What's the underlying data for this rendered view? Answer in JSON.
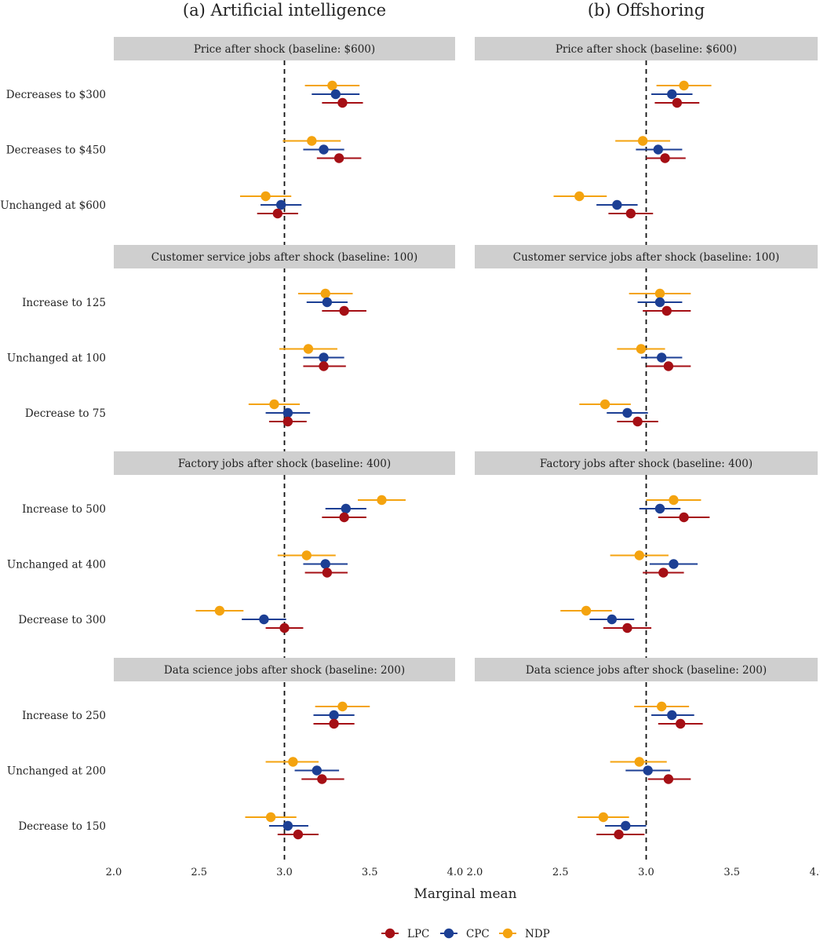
{
  "chart_data": {
    "type": "dot-and-whisker",
    "xlabel": "Marginal mean",
    "xlim": [
      2.0,
      4.0
    ],
    "xticks": [
      2.0,
      2.5,
      3.0,
      3.5,
      4.0
    ],
    "xtick_labels": [
      "2.0",
      "2.5",
      "3.0",
      "3.5",
      "4.0"
    ],
    "reference_line": 3.0,
    "legend": [
      {
        "key": "LPC",
        "label": "LPC",
        "color": "#a50f15"
      },
      {
        "key": "CPC",
        "label": "CPC",
        "color": "#1c3f94"
      },
      {
        "key": "NDP",
        "label": "NDP",
        "color": "#f4a30f"
      }
    ],
    "panels": [
      {
        "title": "(a) Artificial intelligence",
        "facets": [
          {
            "title": "Price after shock (baseline: $600)",
            "rows": [
              {
                "label": "Decreases to $300",
                "NDP": [
                  3.28,
                  3.12,
                  3.44
                ],
                "CPC": [
                  3.3,
                  3.16,
                  3.44
                ],
                "LPC": [
                  3.34,
                  3.22,
                  3.46
                ]
              },
              {
                "label": "Decreases to $450",
                "NDP": [
                  3.16,
                  2.99,
                  3.33
                ],
                "CPC": [
                  3.23,
                  3.11,
                  3.35
                ],
                "LPC": [
                  3.32,
                  3.19,
                  3.45
                ]
              },
              {
                "label": "Unchanged at $600",
                "NDP": [
                  2.89,
                  2.74,
                  3.04
                ],
                "CPC": [
                  2.98,
                  2.86,
                  3.1
                ],
                "LPC": [
                  2.96,
                  2.84,
                  3.08
                ]
              }
            ]
          },
          {
            "title": "Customer service jobs after shock (baseline: 100)",
            "rows": [
              {
                "label": "Increase to 125",
                "NDP": [
                  3.24,
                  3.08,
                  3.4
                ],
                "CPC": [
                  3.25,
                  3.13,
                  3.37
                ],
                "LPC": [
                  3.35,
                  3.22,
                  3.48
                ]
              },
              {
                "label": "Unchanged at 100",
                "NDP": [
                  3.14,
                  2.97,
                  3.31
                ],
                "CPC": [
                  3.23,
                  3.11,
                  3.35
                ],
                "LPC": [
                  3.23,
                  3.11,
                  3.36
                ]
              },
              {
                "label": "Decrease to 75",
                "NDP": [
                  2.94,
                  2.79,
                  3.09
                ],
                "CPC": [
                  3.02,
                  2.89,
                  3.15
                ],
                "LPC": [
                  3.02,
                  2.91,
                  3.13
                ]
              }
            ]
          },
          {
            "title": "Factory jobs after shock (baseline: 400)",
            "rows": [
              {
                "label": "Increase to 500",
                "NDP": [
                  3.57,
                  3.43,
                  3.71
                ],
                "CPC": [
                  3.36,
                  3.24,
                  3.48
                ],
                "LPC": [
                  3.35,
                  3.22,
                  3.48
                ]
              },
              {
                "label": "Unchanged at 400",
                "NDP": [
                  3.13,
                  2.96,
                  3.3
                ],
                "CPC": [
                  3.24,
                  3.11,
                  3.37
                ],
                "LPC": [
                  3.25,
                  3.12,
                  3.37
                ]
              },
              {
                "label": "Decrease to 300",
                "NDP": [
                  2.62,
                  2.48,
                  2.76
                ],
                "CPC": [
                  2.88,
                  2.75,
                  3.01
                ],
                "LPC": [
                  3.0,
                  2.89,
                  3.11
                ]
              }
            ]
          },
          {
            "title": "Data science jobs after shock (baseline: 200)",
            "rows": [
              {
                "label": "Increase to 250",
                "NDP": [
                  3.34,
                  3.18,
                  3.5
                ],
                "CPC": [
                  3.29,
                  3.17,
                  3.41
                ],
                "LPC": [
                  3.29,
                  3.17,
                  3.41
                ]
              },
              {
                "label": "Unchanged at 200",
                "NDP": [
                  3.05,
                  2.89,
                  3.2
                ],
                "CPC": [
                  3.19,
                  3.06,
                  3.32
                ],
                "LPC": [
                  3.22,
                  3.1,
                  3.35
                ]
              },
              {
                "label": "Decrease to 150",
                "NDP": [
                  2.92,
                  2.77,
                  3.07
                ],
                "CPC": [
                  3.02,
                  2.91,
                  3.14
                ],
                "LPC": [
                  3.08,
                  2.96,
                  3.2
                ]
              }
            ]
          }
        ]
      },
      {
        "title": "(b) Offshoring",
        "facets": [
          {
            "title": "Price after shock (baseline: $600)",
            "rows": [
              {
                "label": "Decreases to $300",
                "NDP": [
                  3.22,
                  3.06,
                  3.38
                ],
                "CPC": [
                  3.15,
                  3.03,
                  3.27
                ],
                "LPC": [
                  3.18,
                  3.05,
                  3.31
                ]
              },
              {
                "label": "Decreases to $450",
                "NDP": [
                  2.98,
                  2.82,
                  3.14
                ],
                "CPC": [
                  3.07,
                  2.94,
                  3.21
                ],
                "LPC": [
                  3.11,
                  3.0,
                  3.23
                ]
              },
              {
                "label": "Unchanged at $600",
                "NDP": [
                  2.61,
                  2.46,
                  2.77
                ],
                "CPC": [
                  2.83,
                  2.71,
                  2.95
                ],
                "LPC": [
                  2.91,
                  2.78,
                  3.04
                ]
              }
            ]
          },
          {
            "title": "Customer service jobs after shock (baseline: 100)",
            "rows": [
              {
                "label": "Increase to 125",
                "NDP": [
                  3.08,
                  2.9,
                  3.26
                ],
                "CPC": [
                  3.08,
                  2.95,
                  3.21
                ],
                "LPC": [
                  3.12,
                  2.98,
                  3.26
                ]
              },
              {
                "label": "Unchanged at 100",
                "NDP": [
                  2.97,
                  2.83,
                  3.11
                ],
                "CPC": [
                  3.09,
                  2.97,
                  3.21
                ],
                "LPC": [
                  3.13,
                  3.0,
                  3.26
                ]
              },
              {
                "label": "Decrease to 75",
                "NDP": [
                  2.76,
                  2.61,
                  2.91
                ],
                "CPC": [
                  2.89,
                  2.77,
                  3.01
                ],
                "LPC": [
                  2.95,
                  2.83,
                  3.07
                ]
              }
            ]
          },
          {
            "title": "Factory jobs after shock (baseline: 400)",
            "rows": [
              {
                "label": "Increase to 500",
                "NDP": [
                  3.16,
                  3.0,
                  3.32
                ],
                "CPC": [
                  3.08,
                  2.96,
                  3.2
                ],
                "LPC": [
                  3.22,
                  3.07,
                  3.37
                ]
              },
              {
                "label": "Unchanged at 400",
                "NDP": [
                  2.96,
                  2.79,
                  3.13
                ],
                "CPC": [
                  3.16,
                  3.02,
                  3.3
                ],
                "LPC": [
                  3.1,
                  2.98,
                  3.22
                ]
              },
              {
                "label": "Decrease to 300",
                "NDP": [
                  2.65,
                  2.5,
                  2.8
                ],
                "CPC": [
                  2.8,
                  2.67,
                  2.93
                ],
                "LPC": [
                  2.89,
                  2.75,
                  3.03
                ]
              }
            ]
          },
          {
            "title": "Data science jobs after shock (baseline: 200)",
            "rows": [
              {
                "label": "Increase to 250",
                "NDP": [
                  3.09,
                  2.93,
                  3.25
                ],
                "CPC": [
                  3.15,
                  3.03,
                  3.28
                ],
                "LPC": [
                  3.2,
                  3.07,
                  3.33
                ]
              },
              {
                "label": "Unchanged at 200",
                "NDP": [
                  2.96,
                  2.79,
                  3.12
                ],
                "CPC": [
                  3.01,
                  2.88,
                  3.14
                ],
                "LPC": [
                  3.13,
                  3.01,
                  3.26
                ]
              },
              {
                "label": "Decrease to 150",
                "NDP": [
                  2.75,
                  2.6,
                  2.9
                ],
                "CPC": [
                  2.88,
                  2.76,
                  3.0
                ],
                "LPC": [
                  2.84,
                  2.71,
                  2.99
                ]
              }
            ]
          }
        ]
      }
    ]
  }
}
